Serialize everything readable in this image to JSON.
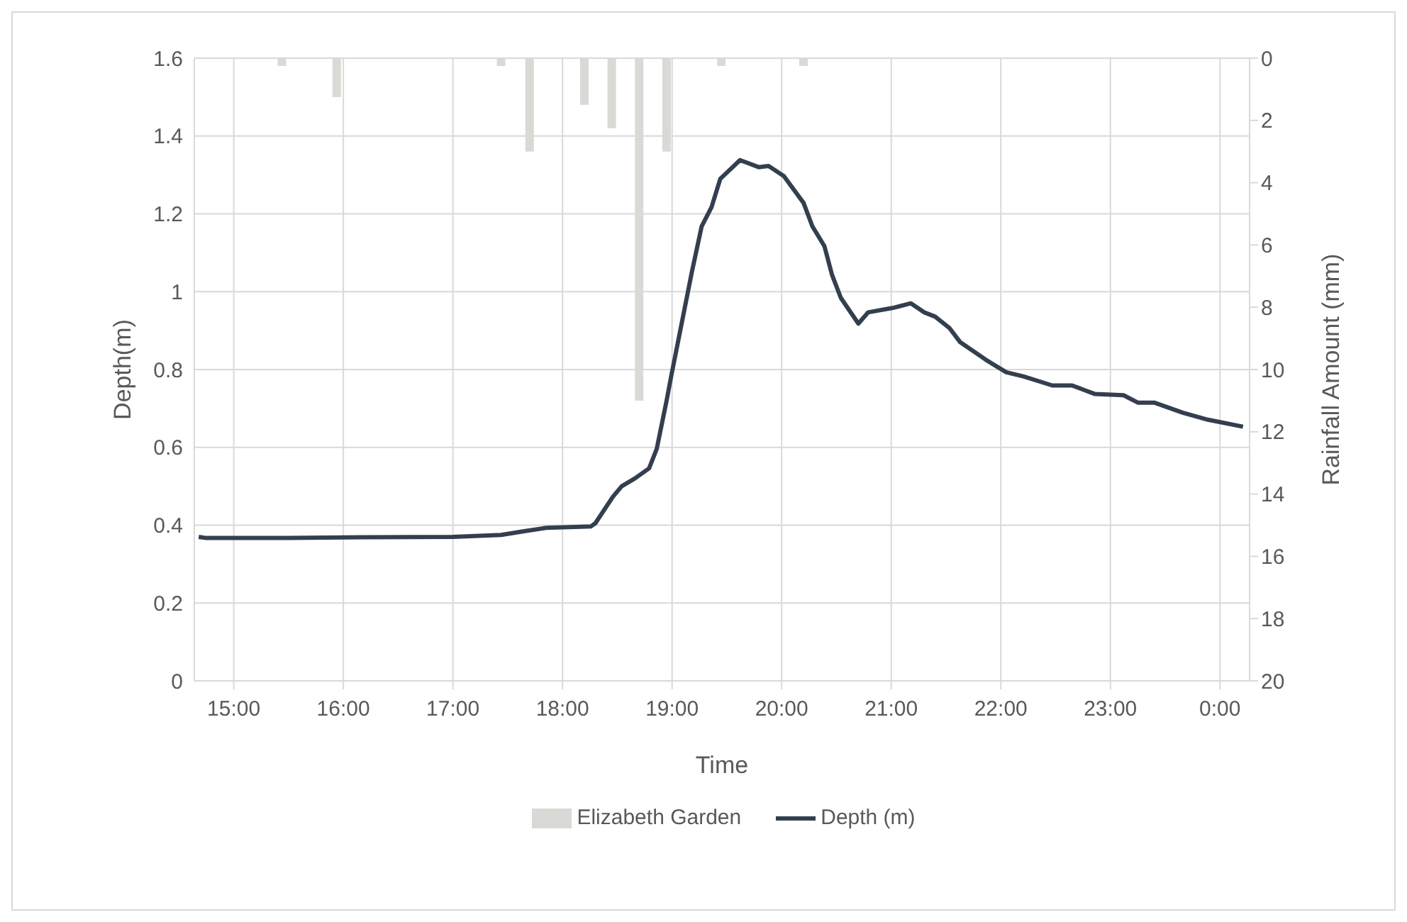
{
  "chart_data": {
    "type": "line",
    "xlabel": "Time",
    "ylabel": "Depth(m)",
    "y2label": "Rainfall Amount (mm)",
    "xlim": [
      14.64,
      24.27
    ],
    "xticks": [
      {
        "value": 15,
        "label": "15:00"
      },
      {
        "value": 16,
        "label": "16:00"
      },
      {
        "value": 17,
        "label": "17:00"
      },
      {
        "value": 18,
        "label": "18:00"
      },
      {
        "value": 19,
        "label": "19:00"
      },
      {
        "value": 20,
        "label": "20:00"
      },
      {
        "value": 21,
        "label": "21:00"
      },
      {
        "value": 22,
        "label": "22:00"
      },
      {
        "value": 23,
        "label": "23:00"
      },
      {
        "value": 24,
        "label": "0:00"
      }
    ],
    "ylim": [
      0,
      1.6
    ],
    "yticks": [
      0,
      0.2,
      0.4,
      0.6,
      0.8,
      1,
      1.2,
      1.4,
      1.6
    ],
    "y2lim": [
      20,
      0
    ],
    "y2ticks": [
      0,
      2,
      4,
      6,
      8,
      10,
      12,
      14,
      16,
      18,
      20
    ],
    "grid": true,
    "legend": "bottom",
    "marker": "none",
    "line_style": "solid",
    "series": [
      {
        "name": "Elizabeth Garden",
        "type": "bar",
        "axis": "y2",
        "color": "#d9d9d6",
        "x": [
          15.44,
          15.94,
          17.44,
          17.7,
          18.2,
          18.45,
          18.7,
          18.95,
          19.45,
          20.2
        ],
        "values": [
          0.25,
          1.25,
          0.25,
          3,
          1.5,
          2.25,
          11,
          3,
          0.25,
          0.25
        ]
      },
      {
        "name": "Depth (m)",
        "color": "#333f4f",
        "x": [
          14.68,
          14.75,
          15.5,
          16.2,
          17,
          17.44,
          17.66,
          17.85,
          18.26,
          18.3,
          18.46,
          18.54,
          18.66,
          18.79,
          18.86,
          18.95,
          18.99,
          19.18,
          19.27,
          19.36,
          19.44,
          19.62,
          19.79,
          19.88,
          20.02,
          20.2,
          20.28,
          20.39,
          20.46,
          20.54,
          20.7,
          20.79,
          21.01,
          21.18,
          21.3,
          21.4,
          21.53,
          21.63,
          21.88,
          22.05,
          22.21,
          22.47,
          22.65,
          22.86,
          23.12,
          23.25,
          23.4,
          23.66,
          23.89,
          24.21
        ],
        "values": [
          0.37,
          0.367,
          0.367,
          0.369,
          0.37,
          0.375,
          0.385,
          0.393,
          0.397,
          0.405,
          0.473,
          0.5,
          0.52,
          0.546,
          0.596,
          0.72,
          0.78,
          1.05,
          1.168,
          1.217,
          1.29,
          1.338,
          1.32,
          1.323,
          1.297,
          1.228,
          1.168,
          1.117,
          1.043,
          0.984,
          0.918,
          0.947,
          0.958,
          0.97,
          0.947,
          0.936,
          0.907,
          0.87,
          0.822,
          0.793,
          0.782,
          0.759,
          0.759,
          0.737,
          0.734,
          0.715,
          0.715,
          0.689,
          0.671,
          0.653
        ]
      }
    ]
  }
}
